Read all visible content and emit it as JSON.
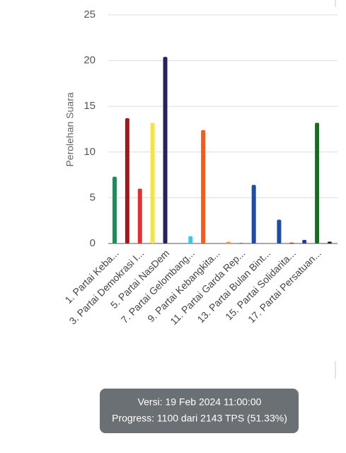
{
  "chart_data": {
    "type": "bar",
    "y_label": "Perolehan Suara",
    "categories": [
      "1. Partai Keba...",
      null,
      "3. Partai Demokrasi I...",
      null,
      "5. Partai NasDem",
      null,
      "7. Partai Gelombang...",
      null,
      "9. Partai Kebangkita...",
      null,
      "11. Partai Garda Rep...",
      null,
      "13. Partai Bulan Bint...",
      null,
      "15. Partai Solidarita...",
      null,
      "17. Partai Persatuan...",
      null
    ],
    "values": [
      7.3,
      13.7,
      6.0,
      13.2,
      20.4,
      0,
      0.8,
      12.4,
      0,
      0.2,
      0.05,
      6.4,
      0,
      2.6,
      0.1,
      0.4,
      13.2,
      0.2
    ],
    "colors": [
      "#1f8a5c",
      "#9e1b1b",
      "#e03030",
      "#f4e449",
      "#26215f",
      "#888888",
      "#3fc6ee",
      "#f05e1f",
      "#888888",
      "#f0a33a",
      "#222222",
      "#1d4f9e",
      "#888888",
      "#1f4e9f",
      "#c22222",
      "#2b3a8f",
      "#1a6a21",
      "#222222"
    ],
    "ylim": [
      0,
      25
    ],
    "yticks": [
      0,
      5,
      10,
      15,
      20,
      25
    ],
    "grid": true
  },
  "footer": {
    "version": "Versi: 19 Feb 2024 11:00:00",
    "progress": "Progress: 1100 dari 2143 TPS (51.33%)"
  }
}
